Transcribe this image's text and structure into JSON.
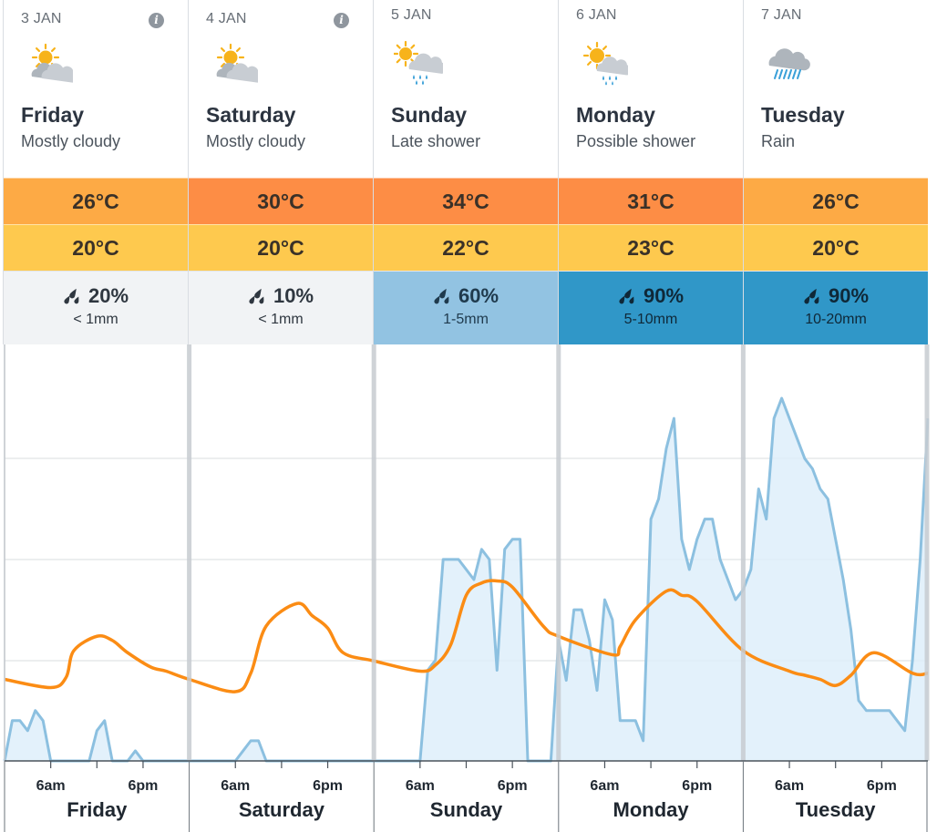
{
  "days": [
    {
      "date": "3 JAN",
      "name": "Friday",
      "desc": "Mostly cloudy",
      "icon": "mostly-cloudy-icon",
      "max": "26°C",
      "min": "20°C",
      "max_color": "#fdaa45",
      "min_color": "#fec94e",
      "rain_chance": "20%",
      "rain_amount": "< 1mm",
      "rain_bg": "#f1f3f5",
      "rain_fg": "#2f3740",
      "info": true
    },
    {
      "date": "4 JAN",
      "name": "Saturday",
      "desc": "Mostly cloudy",
      "icon": "mostly-cloudy-icon",
      "max": "30°C",
      "min": "20°C",
      "max_color": "#fd8d45",
      "min_color": "#fec94e",
      "rain_chance": "10%",
      "rain_amount": "< 1mm",
      "rain_bg": "#f1f3f5",
      "rain_fg": "#2f3740",
      "info": true
    },
    {
      "date": "5 JAN",
      "name": "Sunday",
      "desc": "Late shower",
      "icon": "late-shower-icon",
      "max": "34°C",
      "min": "22°C",
      "max_color": "#fd8d45",
      "min_color": "#fec94e",
      "rain_chance": "60%",
      "rain_amount": "1-5mm",
      "rain_bg": "#92c3e2",
      "rain_fg": "#1f3a4d",
      "info": false
    },
    {
      "date": "6 JAN",
      "name": "Monday",
      "desc": "Possible shower",
      "icon": "possible-shower-icon",
      "max": "31°C",
      "min": "23°C",
      "max_color": "#fd8d45",
      "min_color": "#fec94e",
      "rain_chance": "90%",
      "rain_amount": "5-10mm",
      "rain_bg": "#3097c8",
      "rain_fg": "#0f2838",
      "info": false
    },
    {
      "date": "7 JAN",
      "name": "Tuesday",
      "desc": "Rain",
      "icon": "rain-icon",
      "max": "26°C",
      "min": "20°C",
      "max_color": "#fdaa45",
      "min_color": "#fec94e",
      "rain_chance": "90%",
      "rain_amount": "10-20mm",
      "rain_bg": "#3097c8",
      "rain_fg": "#0f2838",
      "info": false
    }
  ],
  "axis": {
    "am_label": "6am",
    "pm_label": "6pm"
  },
  "colors": {
    "temperature_line": "#fb8c14",
    "rain_line": "#8cc0e0",
    "rain_fill": "#deeefa",
    "gridline": "#d8dcdf",
    "day_divider": "#c7ccd1"
  },
  "chart_data": {
    "type": "line",
    "x_unit": "hours from start of Friday 3 Jan",
    "series": [
      {
        "key": "temperature",
        "x": [
          0,
          6,
          8,
          9,
          12,
          14,
          16,
          19,
          21,
          24,
          30,
          32,
          34,
          38,
          40,
          42,
          44,
          48,
          54,
          56,
          58,
          60,
          62,
          64,
          66,
          70,
          72,
          79,
          80,
          82,
          86,
          88,
          90,
          96,
          102,
          104,
          106,
          108,
          110,
          113,
          118,
          120
        ],
        "y": [
          20.2,
          19.8,
          20.3,
          21.6,
          22.3,
          22.1,
          21.5,
          20.8,
          20.6,
          20.2,
          19.6,
          20.5,
          22.8,
          23.9,
          23.3,
          22.7,
          21.5,
          21.1,
          20.6,
          20.9,
          21.9,
          24.3,
          24.9,
          25.0,
          24.7,
          22.8,
          22.3,
          21.4,
          21.8,
          23.1,
          24.5,
          24.3,
          24.0,
          21.6,
          20.6,
          20.4,
          20.2,
          19.9,
          20.4,
          21.5,
          20.5,
          20.5
        ]
      },
      {
        "key": "rain",
        "x": [
          0,
          1,
          2,
          3,
          4,
          5,
          6,
          7,
          8,
          9,
          10,
          11,
          12,
          13,
          14,
          15,
          16,
          17,
          18,
          19,
          20,
          21,
          22,
          23,
          24,
          30,
          31,
          32,
          33,
          34,
          35,
          36,
          48,
          54,
          55,
          56,
          57,
          58,
          59,
          60,
          61,
          62,
          63,
          64,
          65,
          66,
          67,
          68,
          69,
          70,
          71,
          72,
          73,
          74,
          75,
          76,
          77,
          78,
          79,
          80,
          81,
          82,
          83,
          84,
          85,
          86,
          87,
          88,
          89,
          90,
          91,
          92,
          93,
          94,
          95,
          96,
          97,
          98,
          99,
          100,
          101,
          102,
          103,
          104,
          105,
          106,
          107,
          108,
          109,
          110,
          111,
          112,
          113,
          114,
          115,
          116,
          117,
          118,
          119,
          120
        ],
        "y": [
          0,
          0.4,
          0.4,
          0.3,
          0.5,
          0.4,
          0,
          0,
          0,
          0,
          0,
          0,
          0.3,
          0.4,
          0,
          0,
          0,
          0.1,
          0,
          0,
          0,
          0,
          0,
          0,
          0,
          0,
          0.1,
          0.2,
          0.2,
          0,
          0,
          0,
          0,
          0,
          0.9,
          1.0,
          2.0,
          2.0,
          2.0,
          1.9,
          1.8,
          2.1,
          2.0,
          0.9,
          2.1,
          2.2,
          2.2,
          0,
          0,
          0,
          0,
          1.2,
          0.8,
          1.5,
          1.5,
          1.2,
          0.7,
          1.6,
          1.4,
          0.4,
          0.4,
          0.4,
          0.2,
          2.4,
          2.6,
          3.1,
          3.4,
          2.2,
          1.9,
          2.2,
          2.4,
          2.4,
          2.0,
          1.8,
          1.6,
          1.7,
          1.9,
          2.7,
          2.4,
          3.4,
          3.6,
          3.4,
          3.2,
          3.0,
          2.9,
          2.7,
          2.6,
          2.2,
          1.8,
          1.3,
          0.6,
          0.5,
          0.5,
          0.5,
          0.5,
          0.4,
          0.3,
          1.0,
          2.0,
          3.4
        ]
      }
    ]
  }
}
